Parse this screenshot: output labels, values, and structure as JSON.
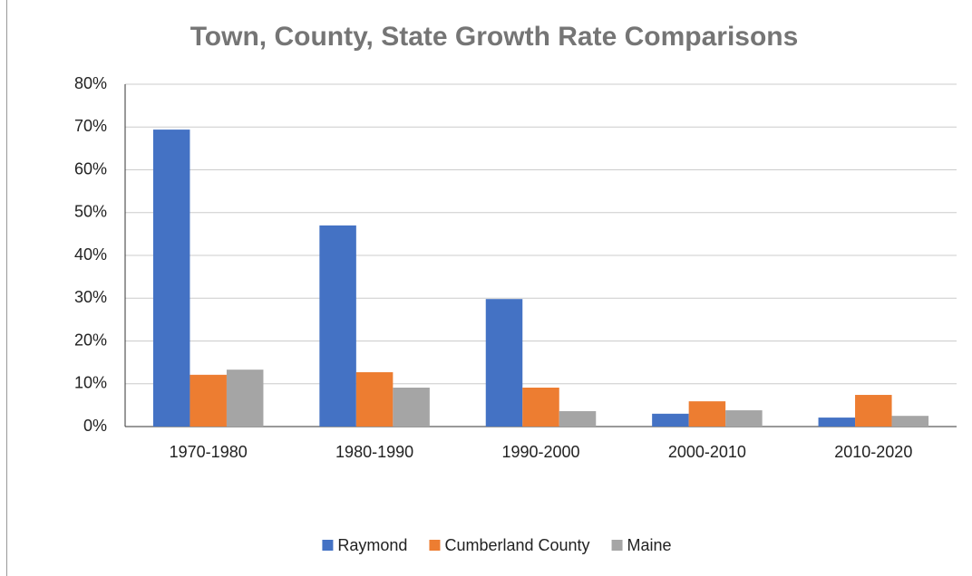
{
  "chart_data": {
    "type": "bar",
    "title": "Town, County, State Growth Rate Comparisons",
    "categories": [
      "1970-1980",
      "1980-1990",
      "1990-2000",
      "2000-2010",
      "2010-2020"
    ],
    "series": [
      {
        "name": "Raymond",
        "color": "#4472c4",
        "values": [
          69.4,
          47,
          29.8,
          3,
          2.1
        ]
      },
      {
        "name": "Cumberland County",
        "color": "#ed7d31",
        "values": [
          12.1,
          12.7,
          9.1,
          5.9,
          7.4
        ]
      },
      {
        "name": "Maine",
        "color": "#a5a5a5",
        "values": [
          13.3,
          9.1,
          3.6,
          3.8,
          2.5
        ]
      }
    ],
    "ylim": [
      0,
      80
    ],
    "yticks": [
      {
        "value": 0,
        "label": "0%"
      },
      {
        "value": 10,
        "label": "10%"
      },
      {
        "value": 20,
        "label": "20%"
      },
      {
        "value": 30,
        "label": "30%"
      },
      {
        "value": 40,
        "label": "40%"
      },
      {
        "value": 50,
        "label": "50%"
      },
      {
        "value": 60,
        "label": "60%"
      },
      {
        "value": 70,
        "label": "70%"
      },
      {
        "value": 80,
        "label": "80%"
      }
    ],
    "grid": true,
    "legend": "bottom"
  }
}
